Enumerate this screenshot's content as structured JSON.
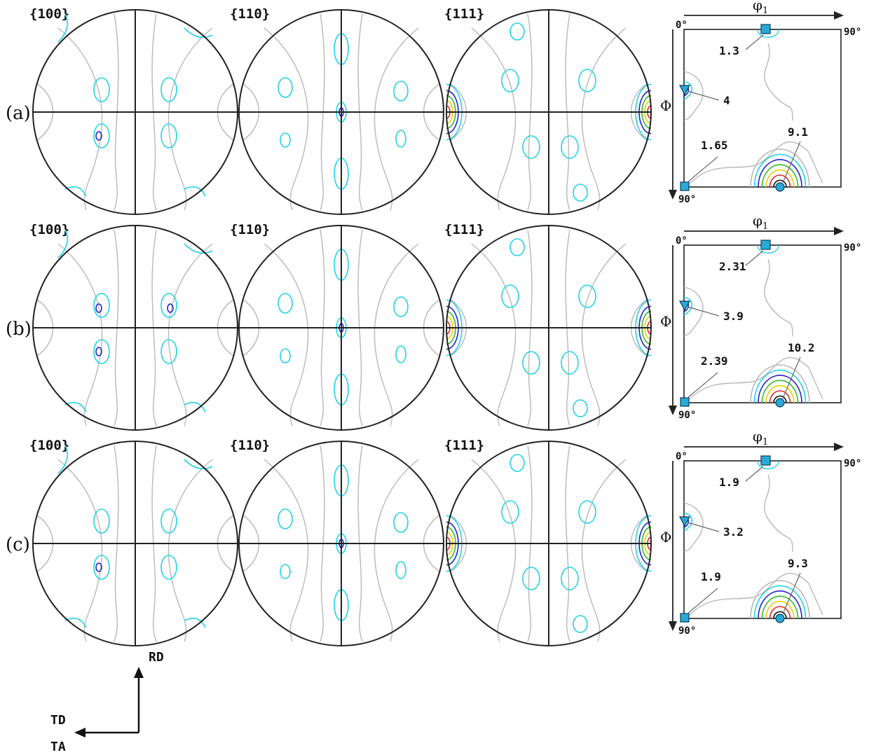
{
  "colors": {
    "frame": "#222222",
    "contour_grey": "#b8b8b8",
    "contour_cyan": "#22d3e6",
    "contour_blue": "#2222cc",
    "contour_green": "#33bb33",
    "contour_yellow": "#e8d000",
    "contour_red": "#dd2222",
    "contour_dark": "#111111",
    "marker_fill": "#29a9d8"
  },
  "icons": {
    "square_marker": "square-marker-icon",
    "triangle_marker": "triangle-marker-icon",
    "circle_marker": "circle-marker-icon"
  },
  "rows": [
    {
      "label": "(a)",
      "poles": [
        "{100}",
        "{110}",
        "{111}"
      ],
      "odf": {
        "phi1_label": "φ",
        "phi1_sub": "1",
        "Phi_label": "Φ",
        "origin_label": "0°",
        "end_label": "90°",
        "bottom_label": "90°",
        "values": [
          "1.3",
          "4",
          "1.65",
          "9.1"
        ]
      }
    },
    {
      "label": "(b)",
      "poles": [
        "{100}",
        "{110}",
        "{111}"
      ],
      "odf": {
        "phi1_label": "φ",
        "phi1_sub": "1",
        "Phi_label": "Φ",
        "origin_label": "0°",
        "end_label": "90°",
        "bottom_label": "90°",
        "values": [
          "2.31",
          "3.9",
          "2.39",
          "10.2"
        ]
      }
    },
    {
      "label": "(c)",
      "poles": [
        "{100}",
        "{110}",
        "{111}"
      ],
      "odf": {
        "phi1_label": "φ",
        "phi1_sub": "1",
        "Phi_label": "Φ",
        "origin_label": "0°",
        "end_label": "90°",
        "bottom_label": "90°",
        "values": [
          "1.9",
          "3.2",
          "1.9",
          "9.3"
        ]
      }
    }
  ],
  "axes": {
    "rd": "RD",
    "td": "TD",
    "ta": "TA"
  }
}
